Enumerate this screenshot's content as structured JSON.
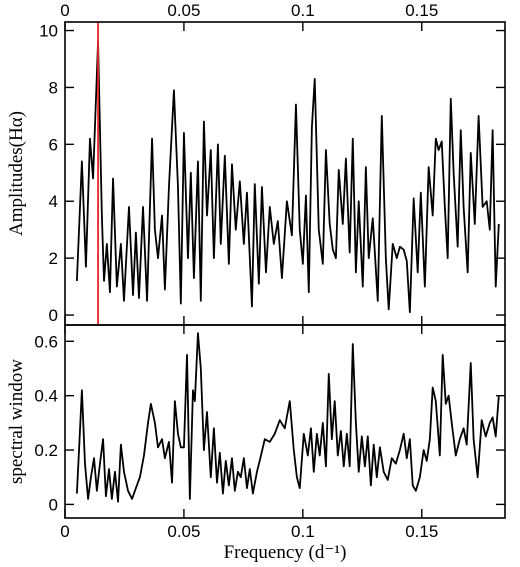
{
  "chart_data": [
    {
      "type": "line",
      "ylabel": "Amplitudes(Hα)",
      "xtick_labels_position": "top",
      "xlim": [
        0,
        0.185
      ],
      "xticks": [
        0,
        0.05,
        0.1,
        0.15
      ],
      "ylim": [
        -0.35,
        10.3
      ],
      "yticks": [
        0,
        2,
        4,
        6,
        8,
        10
      ],
      "vline": {
        "x": 0.0139,
        "color": "#e8262a"
      },
      "x": [
        0.005,
        0.0071,
        0.0088,
        0.0105,
        0.0118,
        0.0139,
        0.0155,
        0.0164,
        0.0176,
        0.0189,
        0.0202,
        0.0218,
        0.0235,
        0.0248,
        0.0269,
        0.0286,
        0.0298,
        0.0311,
        0.0328,
        0.0345,
        0.0366,
        0.0378,
        0.0391,
        0.0408,
        0.042,
        0.0437,
        0.0458,
        0.0475,
        0.0487,
        0.05,
        0.0517,
        0.0529,
        0.0542,
        0.0559,
        0.0571,
        0.0584,
        0.0597,
        0.0613,
        0.0626,
        0.0643,
        0.0655,
        0.0672,
        0.0689,
        0.0702,
        0.0718,
        0.0735,
        0.0752,
        0.0765,
        0.0786,
        0.0798,
        0.0815,
        0.0828,
        0.0845,
        0.0861,
        0.0878,
        0.0895,
        0.0912,
        0.0933,
        0.0954,
        0.0971,
        0.0987,
        0.1,
        0.1013,
        0.1025,
        0.1038,
        0.105,
        0.1067,
        0.1084,
        0.1097,
        0.1113,
        0.1126,
        0.1139,
        0.1151,
        0.1168,
        0.1181,
        0.1197,
        0.121,
        0.1223,
        0.1235,
        0.1252,
        0.1265,
        0.1277,
        0.1294,
        0.1315,
        0.1332,
        0.1349,
        0.1361,
        0.1378,
        0.1395,
        0.1408,
        0.1424,
        0.1437,
        0.145,
        0.1466,
        0.1483,
        0.1496,
        0.1513,
        0.1529,
        0.1546,
        0.1559,
        0.1571,
        0.1584,
        0.1597,
        0.1609,
        0.1622,
        0.1634,
        0.1651,
        0.1664,
        0.1676,
        0.1693,
        0.1706,
        0.1723,
        0.1739,
        0.1756,
        0.1773,
        0.1786,
        0.1798,
        0.1811,
        0.1824
      ],
      "series": [
        {
          "color": "#000000",
          "values": [
            1.2,
            5.4,
            1.7,
            6.2,
            4.8,
            9.6,
            3.5,
            1.2,
            2.5,
            0.8,
            4.8,
            1.0,
            2.5,
            0.5,
            3.8,
            0.7,
            2.9,
            0.6,
            3.8,
            0.5,
            6.2,
            3.0,
            2.0,
            3.5,
            0.9,
            4.5,
            7.9,
            4.5,
            0.4,
            6.4,
            2.0,
            5.0,
            1.3,
            5.4,
            0.5,
            6.8,
            3.5,
            5.8,
            2.0,
            6.0,
            2.5,
            5.6,
            1.8,
            5.3,
            3.0,
            4.7,
            2.5,
            4.3,
            0.3,
            4.6,
            1.1,
            4.5,
            1.5,
            3.8,
            2.5,
            3.3,
            1.3,
            4.0,
            2.8,
            7.4,
            3.0,
            1.8,
            4.2,
            0.8,
            6.6,
            8.3,
            3.0,
            1.8,
            5.8,
            3.2,
            2.3,
            2.0,
            5.1,
            3.2,
            5.5,
            2.2,
            6.2,
            1.5,
            4.0,
            1.0,
            5.2,
            2.0,
            3.4,
            0.5,
            7.0,
            2.0,
            0.2,
            2.5,
            2.0,
            2.4,
            2.3,
            1.9,
            0.1,
            4.1,
            1.5,
            4.3,
            1.0,
            5.2,
            3.5,
            6.2,
            5.8,
            6.1,
            3.8,
            2.0,
            7.6,
            5.0,
            2.4,
            6.5,
            3.8,
            1.5,
            5.7,
            3.2,
            7.0,
            3.8,
            4.0,
            3.0,
            6.5,
            1.0,
            3.2
          ]
        }
      ]
    },
    {
      "type": "line",
      "ylabel": "spectral window",
      "xlabel": "Frequency (d⁻¹)",
      "xtick_labels_position": "bottom",
      "xlim": [
        0,
        0.185
      ],
      "xticks": [
        0,
        0.05,
        0.1,
        0.15
      ],
      "ylim": [
        -0.05,
        0.66
      ],
      "yticks": [
        0,
        0.2,
        0.4,
        0.6
      ],
      "x": [
        0.005,
        0.0059,
        0.0071,
        0.0084,
        0.0097,
        0.0109,
        0.0122,
        0.0134,
        0.0147,
        0.016,
        0.0172,
        0.0185,
        0.0197,
        0.021,
        0.0223,
        0.0235,
        0.0248,
        0.0265,
        0.0282,
        0.0298,
        0.0315,
        0.0332,
        0.0349,
        0.0361,
        0.0378,
        0.0391,
        0.0408,
        0.042,
        0.0437,
        0.045,
        0.0462,
        0.0475,
        0.0487,
        0.05,
        0.0513,
        0.0525,
        0.0538,
        0.0546,
        0.0559,
        0.0571,
        0.0584,
        0.0597,
        0.0613,
        0.0626,
        0.0639,
        0.0651,
        0.0664,
        0.0676,
        0.0689,
        0.0702,
        0.0714,
        0.0727,
        0.0739,
        0.0752,
        0.0765,
        0.0777,
        0.079,
        0.0807,
        0.0824,
        0.084,
        0.0861,
        0.0882,
        0.0903,
        0.0924,
        0.0945,
        0.0962,
        0.0975,
        0.0987,
        0.1004,
        0.1021,
        0.1034,
        0.1046,
        0.1059,
        0.1071,
        0.1084,
        0.1097,
        0.1109,
        0.1122,
        0.1134,
        0.1147,
        0.116,
        0.1172,
        0.1185,
        0.1197,
        0.121,
        0.1223,
        0.1235,
        0.1248,
        0.1261,
        0.1273,
        0.1286,
        0.1298,
        0.1311,
        0.1324,
        0.134,
        0.1357,
        0.1374,
        0.1391,
        0.1408,
        0.1424,
        0.1437,
        0.145,
        0.1462,
        0.1475,
        0.1492,
        0.1508,
        0.1521,
        0.1534,
        0.1546,
        0.1559,
        0.1576,
        0.1588,
        0.1601,
        0.1613,
        0.1626,
        0.1643,
        0.166,
        0.1676,
        0.1689,
        0.1706,
        0.1718,
        0.1735,
        0.1752,
        0.1769,
        0.1786,
        0.1798,
        0.1811,
        0.1824
      ],
      "series": [
        {
          "color": "#000000",
          "values": [
            0.04,
            0.2,
            0.42,
            0.15,
            0.02,
            0.1,
            0.17,
            0.05,
            0.15,
            0.24,
            0.03,
            0.13,
            0.02,
            0.12,
            0.01,
            0.22,
            0.12,
            0.05,
            0.02,
            0.06,
            0.1,
            0.18,
            0.3,
            0.37,
            0.3,
            0.21,
            0.24,
            0.17,
            0.23,
            0.08,
            0.38,
            0.26,
            0.21,
            0.21,
            0.55,
            0.02,
            0.42,
            0.38,
            0.63,
            0.5,
            0.2,
            0.34,
            0.1,
            0.28,
            0.08,
            0.19,
            0.04,
            0.16,
            0.07,
            0.17,
            0.05,
            0.12,
            0.1,
            0.17,
            0.06,
            0.13,
            0.04,
            0.12,
            0.18,
            0.24,
            0.23,
            0.26,
            0.31,
            0.28,
            0.38,
            0.2,
            0.1,
            0.06,
            0.26,
            0.18,
            0.28,
            0.12,
            0.26,
            0.18,
            0.3,
            0.14,
            0.48,
            0.24,
            0.38,
            0.18,
            0.27,
            0.14,
            0.26,
            0.14,
            0.59,
            0.3,
            0.12,
            0.25,
            0.14,
            0.25,
            0.07,
            0.22,
            0.1,
            0.21,
            0.12,
            0.09,
            0.17,
            0.15,
            0.2,
            0.26,
            0.17,
            0.24,
            0.07,
            0.05,
            0.1,
            0.2,
            0.16,
            0.24,
            0.43,
            0.38,
            0.18,
            0.55,
            0.37,
            0.4,
            0.3,
            0.18,
            0.24,
            0.28,
            0.22,
            0.52,
            0.24,
            0.1,
            0.31,
            0.25,
            0.3,
            0.32,
            0.25,
            0.4
          ]
        }
      ]
    }
  ]
}
